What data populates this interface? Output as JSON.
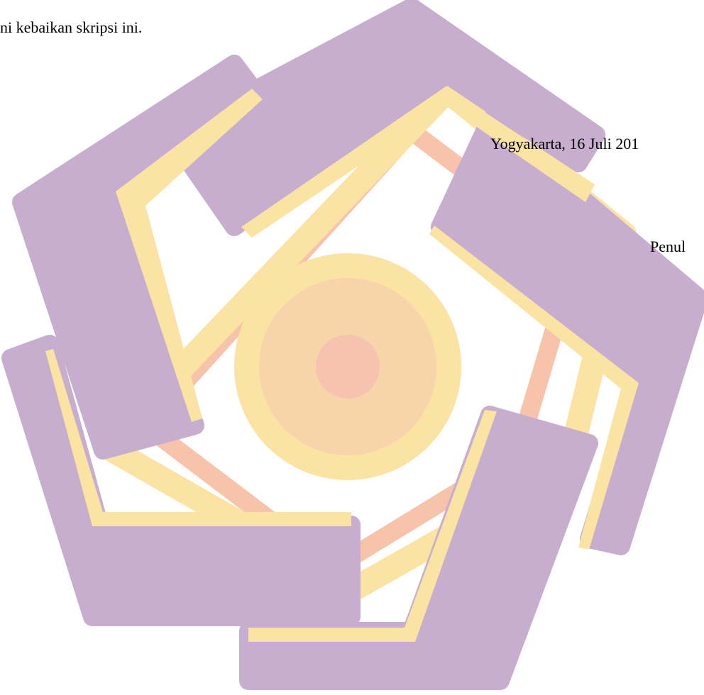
{
  "page": {
    "body_line": "ni kebaikan skripsi ini.",
    "date_line": "Yogyakarta, 16 Juli 201",
    "author_line": "Penul"
  },
  "watermark": {
    "icon": "university-logo-watermark",
    "colors": {
      "outer_purple": "#c7aecf",
      "yellow": "#fbe3a4",
      "salmon": "#f8c3ab",
      "center_orange": "#f8d4ab",
      "center_salmon": "#f6c3af"
    }
  }
}
